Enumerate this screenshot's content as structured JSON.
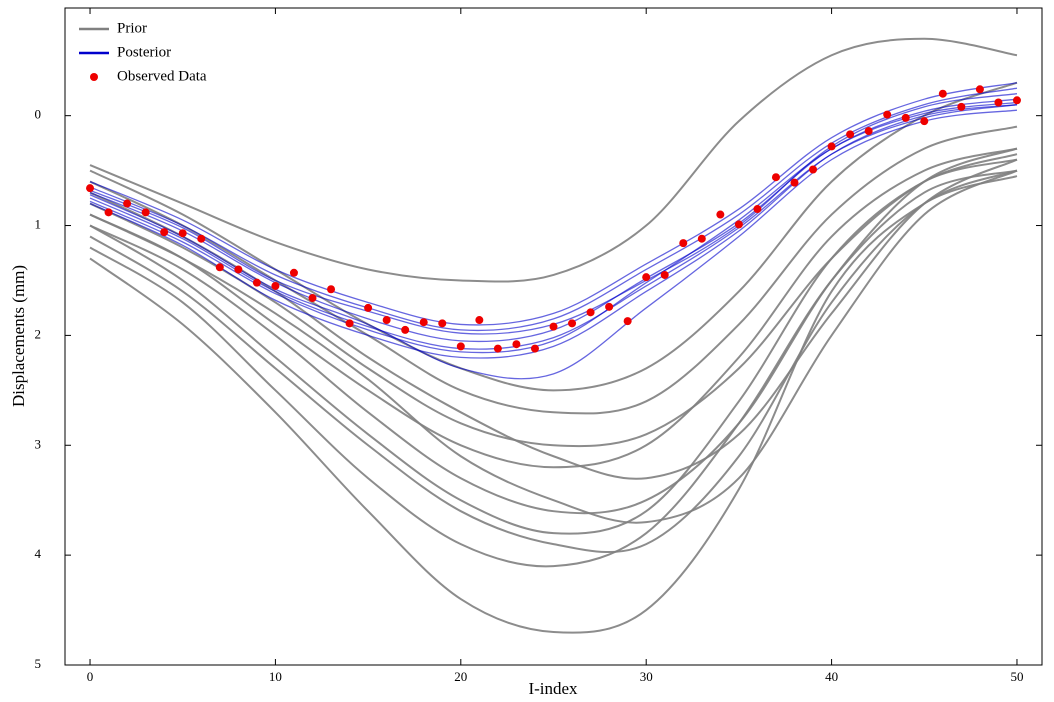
{
  "chart_data": {
    "type": "line",
    "xlabel": "I-index",
    "ylabel": "Displacements (mm)",
    "xlim": [
      -1.35,
      51.35
    ],
    "ylim": [
      -0.98,
      5
    ],
    "y_inverted": true,
    "xticks": [
      0,
      10,
      20,
      30,
      40,
      50
    ],
    "yticks": [
      0,
      1,
      2,
      3,
      4,
      5
    ],
    "legend": "upper left",
    "series": [
      {
        "name": "Prior",
        "color": "#808080",
        "x": [
          0,
          5,
          10,
          15,
          20,
          25,
          30,
          35,
          40,
          45,
          50
        ],
        "curves": [
          [
            0.45,
            0.8,
            1.15,
            1.4,
            1.5,
            1.45,
            1.0,
            0.05,
            -0.55,
            -0.7,
            -0.55
          ],
          [
            1.3,
            1.9,
            2.7,
            3.6,
            4.4,
            4.7,
            4.5,
            3.4,
            1.6,
            0.8,
            0.55
          ],
          [
            1.0,
            1.5,
            2.2,
            2.9,
            3.5,
            3.8,
            3.6,
            2.6,
            1.3,
            0.6,
            0.4
          ],
          [
            0.9,
            1.3,
            1.9,
            2.5,
            3.0,
            3.2,
            3.0,
            2.2,
            1.1,
            0.5,
            0.3
          ],
          [
            1.2,
            1.7,
            2.5,
            3.3,
            3.9,
            4.1,
            3.8,
            2.8,
            1.5,
            0.7,
            0.5
          ],
          [
            0.6,
            1.0,
            1.5,
            2.0,
            2.5,
            2.7,
            2.6,
            1.9,
            0.9,
            0.3,
            0.1
          ],
          [
            0.8,
            1.2,
            1.7,
            2.3,
            2.8,
            3.0,
            2.9,
            2.3,
            1.3,
            0.6,
            0.35
          ],
          [
            1.1,
            1.6,
            2.3,
            3.0,
            3.6,
            3.9,
            3.9,
            3.1,
            1.7,
            0.8,
            0.5
          ],
          [
            0.7,
            1.1,
            1.6,
            2.2,
            2.7,
            3.1,
            3.3,
            2.9,
            1.8,
            0.8,
            0.4
          ],
          [
            0.5,
            0.9,
            1.4,
            1.9,
            2.3,
            2.5,
            2.3,
            1.6,
            0.6,
            0.0,
            -0.3
          ],
          [
            1.0,
            1.4,
            2.0,
            2.7,
            3.3,
            3.6,
            3.5,
            2.8,
            1.5,
            0.6,
            0.3
          ],
          [
            0.9,
            1.3,
            1.8,
            2.4,
            3.1,
            3.5,
            3.7,
            3.3,
            2.0,
            0.9,
            0.5
          ]
        ]
      },
      {
        "name": "Posterior",
        "color": "#0000cc",
        "x": [
          0,
          5,
          10,
          15,
          20,
          25,
          30,
          35,
          40,
          45,
          50
        ],
        "curves": [
          [
            0.65,
            1.0,
            1.45,
            1.75,
            1.95,
            1.85,
            1.4,
            0.9,
            0.25,
            -0.1,
            -0.25
          ],
          [
            0.75,
            1.12,
            1.6,
            1.92,
            2.12,
            2.02,
            1.55,
            1.02,
            0.35,
            0.02,
            -0.1
          ],
          [
            0.7,
            1.05,
            1.52,
            1.85,
            2.05,
            1.95,
            1.48,
            0.98,
            0.3,
            -0.04,
            -0.15
          ],
          [
            0.8,
            1.18,
            1.68,
            2.0,
            2.2,
            2.1,
            1.6,
            1.05,
            0.35,
            0.0,
            -0.1
          ],
          [
            0.6,
            0.95,
            1.4,
            1.7,
            1.9,
            1.8,
            1.35,
            0.85,
            0.2,
            -0.15,
            -0.3
          ],
          [
            0.72,
            1.1,
            1.58,
            1.9,
            2.3,
            2.35,
            1.75,
            1.1,
            0.4,
            0.05,
            -0.05
          ],
          [
            0.68,
            1.02,
            1.5,
            1.78,
            1.98,
            1.9,
            1.5,
            1.0,
            0.28,
            -0.08,
            -0.2
          ],
          [
            0.78,
            1.15,
            1.62,
            1.95,
            2.15,
            2.05,
            1.52,
            0.95,
            0.3,
            -0.02,
            -0.12
          ]
        ]
      },
      {
        "name": "Observed Data",
        "color": "#ee0000",
        "x": [
          0,
          1,
          2,
          3,
          4,
          5,
          6,
          7,
          8,
          9,
          10,
          11,
          12,
          13,
          14,
          15,
          16,
          17,
          18,
          19,
          20,
          21,
          22,
          23,
          24,
          25,
          26,
          27,
          28,
          29,
          30,
          31,
          32,
          33,
          34,
          35,
          36,
          37,
          38,
          39,
          40,
          41,
          42,
          43,
          44,
          45,
          46,
          47,
          48,
          49,
          50
        ],
        "values": [
          0.66,
          0.88,
          0.8,
          0.88,
          1.06,
          1.07,
          1.12,
          1.38,
          1.4,
          1.52,
          1.55,
          1.43,
          1.66,
          1.58,
          1.89,
          1.75,
          1.86,
          1.95,
          1.88,
          1.89,
          2.1,
          1.86,
          2.12,
          2.08,
          2.12,
          1.92,
          1.89,
          1.79,
          1.74,
          1.87,
          1.47,
          1.45,
          1.16,
          1.12,
          0.9,
          0.99,
          0.85,
          0.56,
          0.61,
          0.49,
          0.28,
          0.17,
          0.14,
          -0.01,
          0.02,
          0.05,
          -0.2,
          -0.08,
          -0.24,
          -0.12,
          -0.14
        ]
      }
    ]
  }
}
